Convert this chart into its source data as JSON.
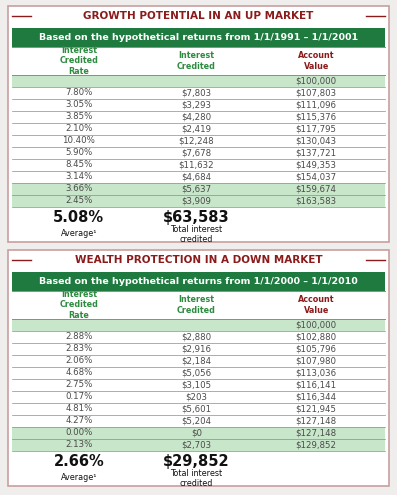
{
  "table1": {
    "title": "GROWTH POTENTIAL IN AN UP MARKET",
    "subtitle": "Based on the hypothetical returns from 1/1/1991 – 1/1/2001",
    "headers": [
      "Interest\nCredited\nRate",
      "Interest\nCredited",
      "Account\nValue"
    ],
    "rows": [
      [
        "",
        "",
        "$100,000"
      ],
      [
        "7.80%",
        "$7,803",
        "$107,803"
      ],
      [
        "3.05%",
        "$3,293",
        "$111,096"
      ],
      [
        "3.85%",
        "$4,280",
        "$115,376"
      ],
      [
        "2.10%",
        "$2,419",
        "$117,795"
      ],
      [
        "10.40%",
        "$12,248",
        "$130,043"
      ],
      [
        "5.90%",
        "$7,678",
        "$137,721"
      ],
      [
        "8.45%",
        "$11,632",
        "$149,353"
      ],
      [
        "3.14%",
        "$4,684",
        "$154,037"
      ],
      [
        "3.66%",
        "$5,637",
        "$159,674"
      ],
      [
        "2.45%",
        "$3,909",
        "$163,583"
      ]
    ],
    "shaded_rows": [
      0,
      9,
      10
    ],
    "avg_rate": "5.08%",
    "avg_label": "Average¹",
    "total_interest": "$63,583",
    "total_label": "Total interest\ncredited"
  },
  "table2": {
    "title": "WEALTH PROTECTION IN A DOWN MARKET",
    "subtitle": "Based on the hypothetical returns from 1/1/2000 – 1/1/2010",
    "headers": [
      "Interest\nCredited\nRate",
      "Interest\nCredited",
      "Account\nValue"
    ],
    "rows": [
      [
        "",
        "",
        "$100,000"
      ],
      [
        "2.88%",
        "$2,880",
        "$102,880"
      ],
      [
        "2.83%",
        "$2,916",
        "$105,796"
      ],
      [
        "2.06%",
        "$2,184",
        "$107,980"
      ],
      [
        "4.68%",
        "$5,056",
        "$113,036"
      ],
      [
        "2.75%",
        "$3,105",
        "$116,141"
      ],
      [
        "0.17%",
        "$203",
        "$116,344"
      ],
      [
        "4.81%",
        "$5,601",
        "$121,945"
      ],
      [
        "4.27%",
        "$5,204",
        "$127,148"
      ],
      [
        "0.00%",
        "$0",
        "$127,148"
      ],
      [
        "2.13%",
        "$2,703",
        "$129,852"
      ]
    ],
    "shaded_rows": [
      0,
      9,
      10
    ],
    "avg_rate": "2.66%",
    "avg_label": "Average¹",
    "total_interest": "$29,852",
    "total_label": "Total interest\ncredited"
  },
  "colors": {
    "title_color": "#8B1A1A",
    "subtitle_bg": "#1e7a3e",
    "subtitle_text": "#ffffff",
    "header_text": "#2e8b40",
    "header_acct_color": "#8B1A1A",
    "data_text": "#4a4a4a",
    "shaded_row_bg": "#c8e6c9",
    "line_color": "#5aaa70",
    "outer_border": "#c8a0a0",
    "avg_text": "#111111",
    "fig_bg": "#f0eded"
  }
}
